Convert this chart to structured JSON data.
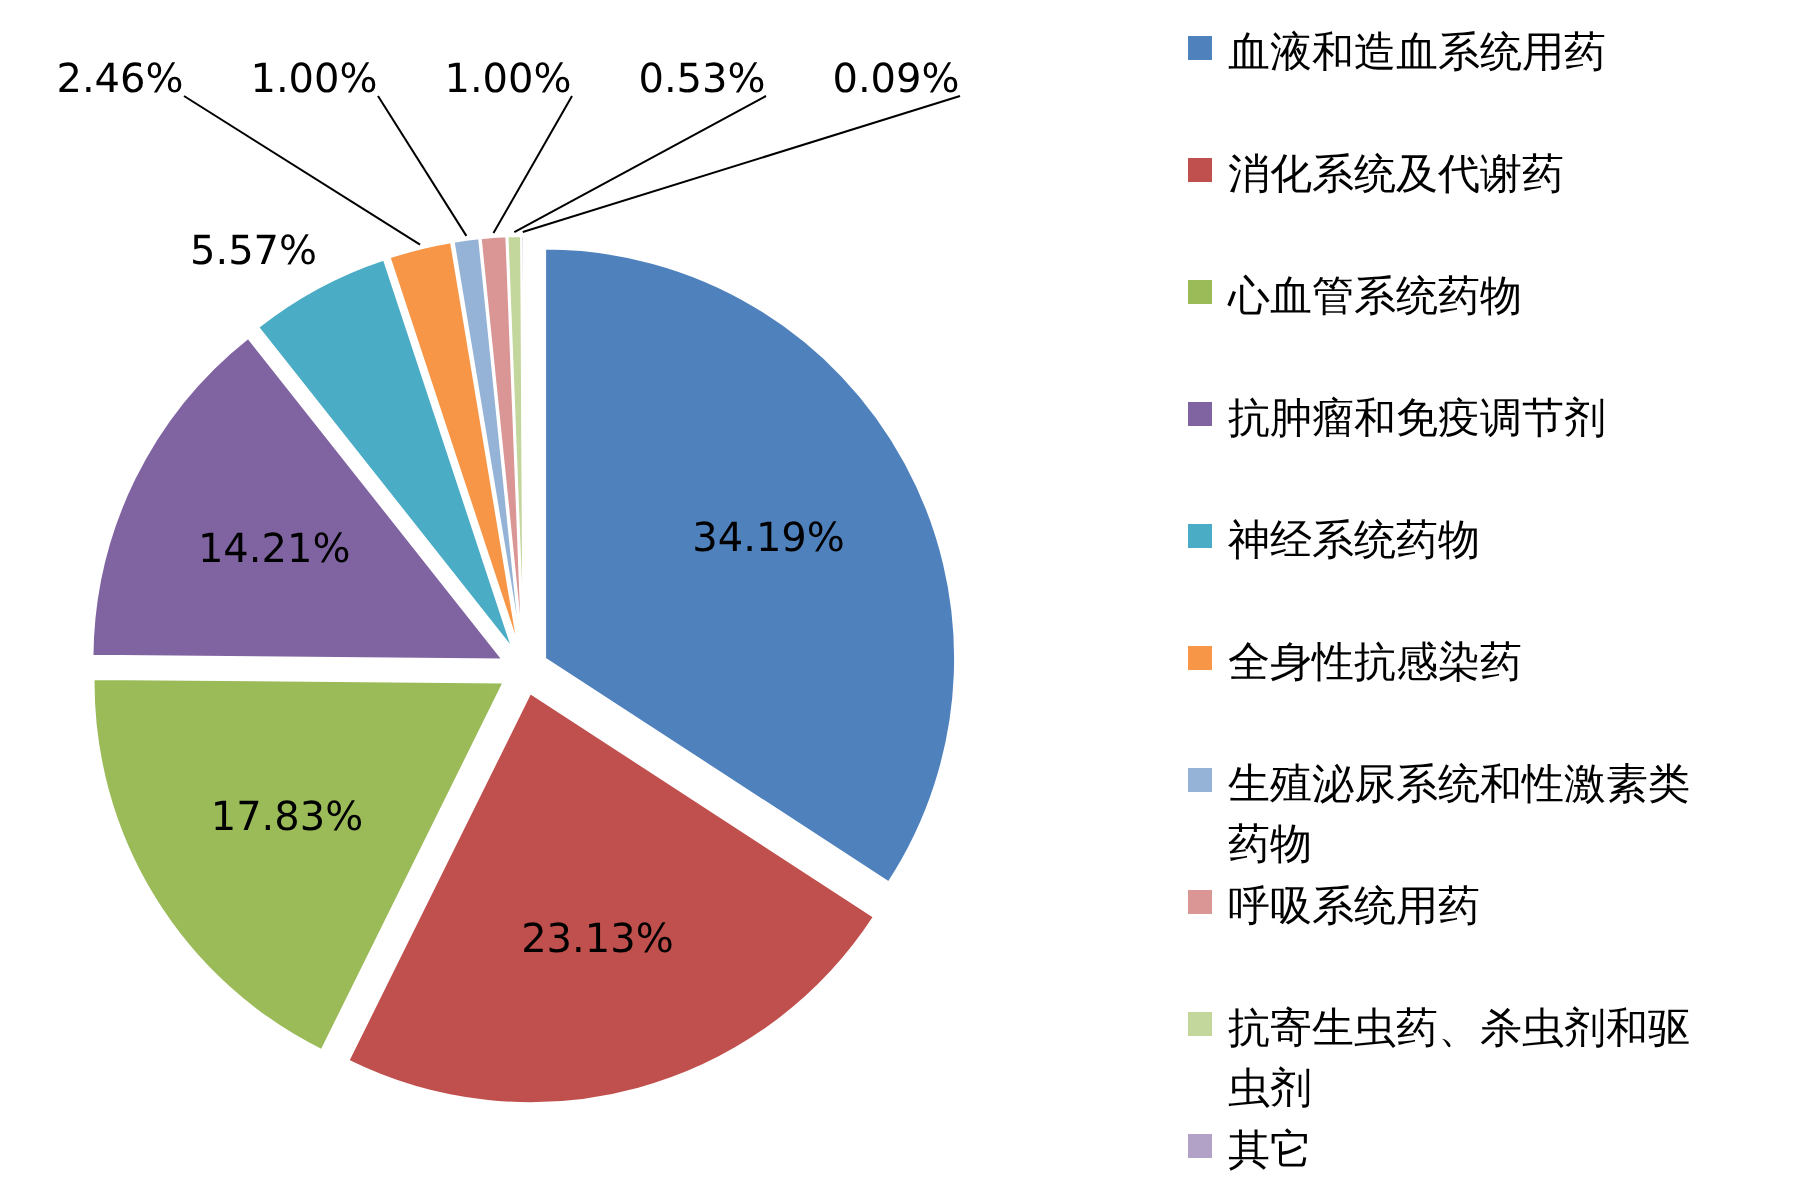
{
  "chart_data": {
    "type": "pie",
    "categories": [
      "血液和造血系统用药",
      "消化系统及代谢药",
      "心血管系统药物",
      "抗肿瘤和免疫调节剂",
      "神经系统药物",
      "全身性抗感染药",
      "生殖泌尿系统和性激素类药物",
      "呼吸系统用药",
      "抗寄生虫药、杀虫剂和驱虫剂",
      "其它"
    ],
    "values": [
      34.19,
      23.13,
      17.83,
      14.21,
      5.57,
      2.46,
      1.0,
      1.0,
      0.53,
      0.09
    ],
    "value_labels": [
      "34.19%",
      "23.13%",
      "17.83%",
      "14.21%",
      "5.57%",
      "2.46%",
      "1.00%",
      "1.00%",
      "0.53%",
      "0.09%"
    ],
    "colors": [
      "#4f81bd",
      "#c0504d",
      "#9bbb59",
      "#8064a2",
      "#4bacc6",
      "#f79646",
      "#95b3d7",
      "#d99694",
      "#c3d69b",
      "#b3a2c7"
    ],
    "legend": "right"
  }
}
